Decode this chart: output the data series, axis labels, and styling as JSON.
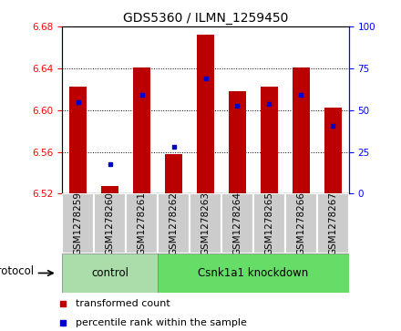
{
  "title": "GDS5360 / ILMN_1259450",
  "samples": [
    "GSM1278259",
    "GSM1278260",
    "GSM1278261",
    "GSM1278262",
    "GSM1278263",
    "GSM1278264",
    "GSM1278265",
    "GSM1278266",
    "GSM1278267"
  ],
  "bar_bottom": 6.52,
  "bar_tops": [
    6.622,
    6.527,
    6.641,
    6.558,
    6.672,
    6.618,
    6.622,
    6.641,
    6.602
  ],
  "percentile_values": [
    6.608,
    6.548,
    6.615,
    6.565,
    6.63,
    6.604,
    6.606,
    6.615,
    6.585
  ],
  "ylim_left": [
    6.52,
    6.68
  ],
  "ylim_right": [
    0,
    100
  ],
  "yticks_left": [
    6.52,
    6.56,
    6.6,
    6.64,
    6.68
  ],
  "yticks_right": [
    0,
    25,
    50,
    75,
    100
  ],
  "bar_color": "#bb0000",
  "percentile_color": "#0000cc",
  "control_color": "#aaddaa",
  "knockdown_color": "#66dd66",
  "cell_color": "#cccccc",
  "cell_edge_color": "#ffffff",
  "n_control": 3,
  "n_knockdown": 6,
  "control_label": "control",
  "knockdown_label": "Csnk1a1 knockdown",
  "protocol_label": "protocol",
  "legend_bar_label": "transformed count",
  "legend_dot_label": "percentile rank within the sample",
  "bar_width": 0.55,
  "title_fontsize": 10,
  "tick_fontsize": 7.5,
  "label_fontsize": 8.5,
  "legend_fontsize": 8
}
